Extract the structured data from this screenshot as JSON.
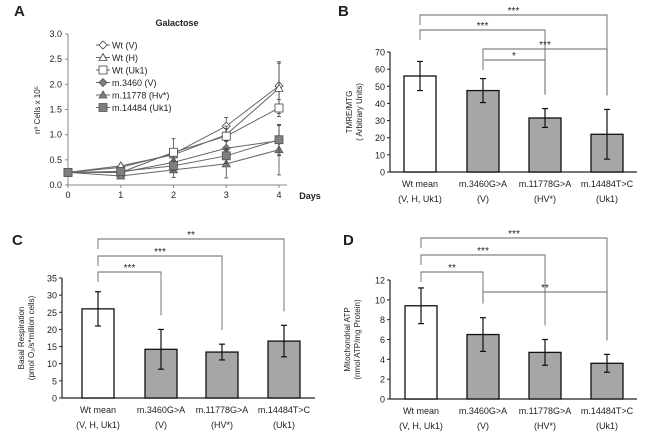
{
  "chart_data": [
    {
      "panel": "A",
      "type": "line",
      "title": "Galactose",
      "xlabel": "Days",
      "ylabel": "nº Cells x 10⁵",
      "x": [
        0,
        1,
        2,
        3,
        4
      ],
      "xlim": [
        0,
        4
      ],
      "ylim": [
        0,
        3.0
      ],
      "yticks": [
        "0.0",
        "0.5",
        "1.0",
        "1.5",
        "2.0",
        "2.5",
        "3.0"
      ],
      "xticks": [
        "0",
        "1",
        "2",
        "3",
        "4"
      ],
      "legend_placement": "top-left",
      "series": [
        {
          "name": "Wt (V)",
          "marker": "diamond-open",
          "values": [
            0.25,
            0.35,
            0.62,
            1.17,
            1.97
          ],
          "errors": [
            0.02,
            0.04,
            0.1,
            0.17,
            0.48
          ]
        },
        {
          "name": "Wt (H)",
          "marker": "triangle-open",
          "values": [
            0.25,
            0.38,
            0.6,
            1.0,
            1.92
          ],
          "errors": [
            0.02,
            0.04,
            0.1,
            0.12,
            0.5
          ]
        },
        {
          "name": "Wt (Uk1)",
          "marker": "square-open",
          "values": [
            0.25,
            0.25,
            0.65,
            0.97,
            1.53
          ],
          "errors": [
            0.02,
            0.05,
            0.27,
            0.2,
            0.17
          ]
        },
        {
          "name": "m.3460 (V)",
          "marker": "diamond-filled",
          "values": [
            0.25,
            0.25,
            0.45,
            0.73,
            0.88
          ],
          "errors": [
            0.02,
            0.04,
            0.12,
            0.13,
            0.3
          ]
        },
        {
          "name": "m.11778 (Hv*)",
          "marker": "triangle-filled",
          "values": [
            0.25,
            0.18,
            0.3,
            0.42,
            0.7
          ],
          "errors": [
            0.02,
            0.03,
            0.15,
            0.28,
            0.5
          ]
        },
        {
          "name": "m.14484 (Uk1)",
          "marker": "square-filled",
          "values": [
            0.25,
            0.27,
            0.38,
            0.58,
            0.9
          ],
          "errors": [
            0.02,
            0.04,
            0.1,
            0.15,
            0.3
          ]
        }
      ]
    },
    {
      "panel": "B",
      "type": "bar",
      "ylabel": [
        "TMRE/MTG",
        "( Arbitrary Units)"
      ],
      "ylim": [
        0,
        70
      ],
      "yticks": [
        "0",
        "10",
        "20",
        "30",
        "40",
        "50",
        "60",
        "70"
      ],
      "categories": [
        [
          "Wt mean",
          "(V, H, Uk1)"
        ],
        [
          "m.3460G>A",
          "(V)"
        ],
        [
          "m.11778G>A",
          "(HV*)"
        ],
        [
          "m.14484T>C",
          "(Uk1)"
        ]
      ],
      "values": [
        56,
        47.5,
        31.5,
        22
      ],
      "errors": [
        8.5,
        7,
        5.5,
        14.5
      ],
      "bar_colors": [
        "#ffffff",
        "#a6a6a6",
        "#a6a6a6",
        "#a6a6a6"
      ],
      "significance": [
        {
          "from": 0,
          "to": 3,
          "label": "***"
        },
        {
          "from": 0,
          "to": 2,
          "label": "***"
        },
        {
          "from": 1,
          "to": 3,
          "label": "***"
        },
        {
          "from": 1,
          "to": 2,
          "label": "*"
        }
      ]
    },
    {
      "panel": "C",
      "type": "bar",
      "ylabel": [
        "Basal Respiration",
        "(pmol O₂/s*million cells)"
      ],
      "ylim": [
        0,
        35
      ],
      "yticks": [
        "0",
        "5",
        "10",
        "15",
        "20",
        "25",
        "30",
        "35"
      ],
      "categories": [
        [
          "Wt mean",
          "(V, H, Uk1)"
        ],
        [
          "m.3460G>A",
          "(V)"
        ],
        [
          "m.11778G>A",
          "(HV*)"
        ],
        [
          "m.14484T>C",
          "(Uk1)"
        ]
      ],
      "values": [
        26,
        14.2,
        13.4,
        16.6
      ],
      "errors": [
        5,
        5.8,
        2.3,
        4.6
      ],
      "bar_colors": [
        "#ffffff",
        "#a6a6a6",
        "#a6a6a6",
        "#a6a6a6"
      ],
      "significance": [
        {
          "from": 0,
          "to": 3,
          "label": "**"
        },
        {
          "from": 0,
          "to": 2,
          "label": "***"
        },
        {
          "from": 0,
          "to": 1,
          "label": "***"
        }
      ]
    },
    {
      "panel": "D",
      "type": "bar",
      "ylabel": [
        "Mitochondrial ATP",
        "(nmol ATP/mg Protein)"
      ],
      "ylim": [
        0,
        12
      ],
      "yticks": [
        "0",
        "2",
        "4",
        "6",
        "8",
        "10",
        "12"
      ],
      "categories": [
        [
          "Wt mean",
          "(V, H, Uk1)"
        ],
        [
          "m.3460G>A",
          "(V)"
        ],
        [
          "m.11778G>A",
          "(HV*)"
        ],
        [
          "m.14484T>C",
          "(Uk1)"
        ]
      ],
      "values": [
        9.4,
        6.5,
        4.7,
        3.6
      ],
      "errors": [
        1.8,
        1.7,
        1.3,
        0.9
      ],
      "bar_colors": [
        "#ffffff",
        "#a6a6a6",
        "#a6a6a6",
        "#a6a6a6"
      ],
      "significance": [
        {
          "from": 0,
          "to": 3,
          "label": "***"
        },
        {
          "from": 0,
          "to": 2,
          "label": "***"
        },
        {
          "from": 0,
          "to": 1,
          "label": "**"
        },
        {
          "from": 1,
          "to": 3,
          "label": "**"
        }
      ]
    }
  ]
}
